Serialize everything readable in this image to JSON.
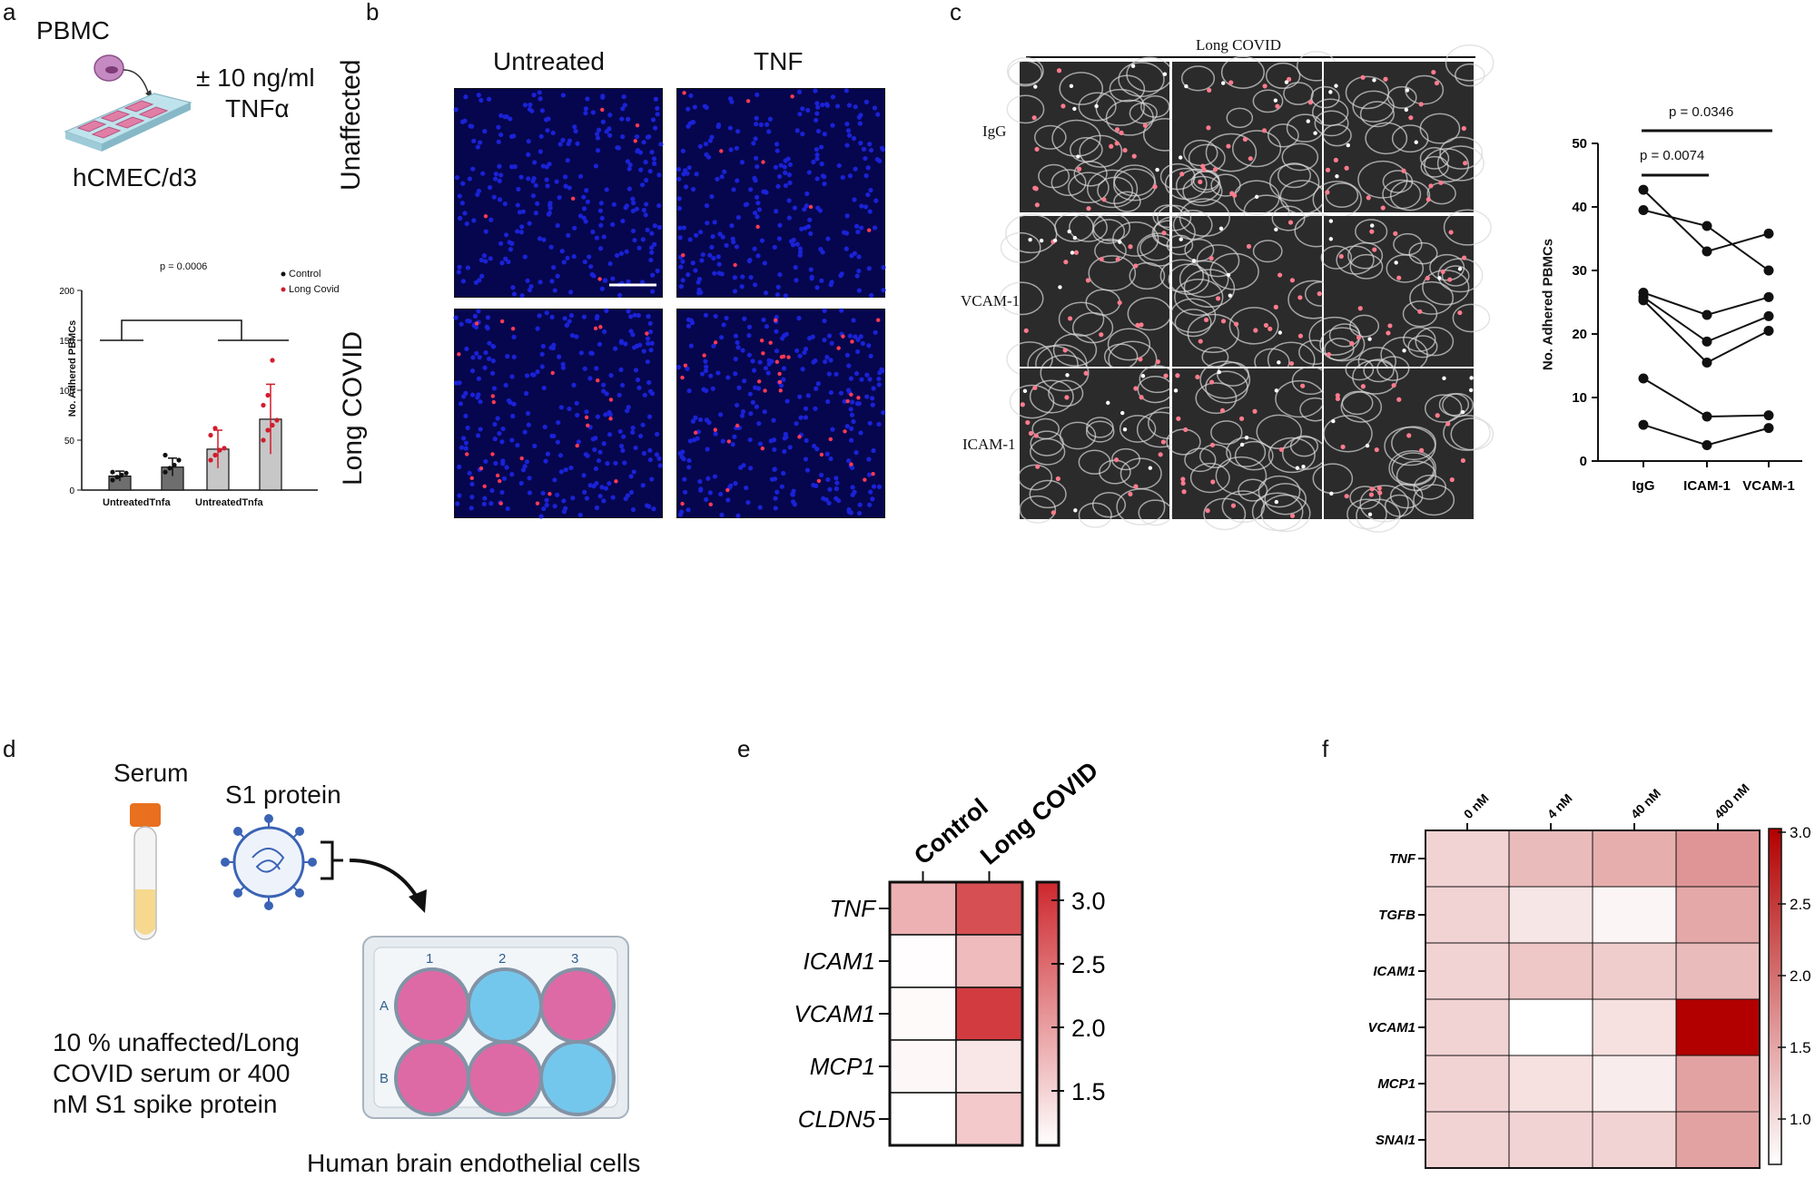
{
  "panels": {
    "a": {
      "label": "a",
      "schematic": {
        "pbmc": "PBMC",
        "treatment_line1": "± 10 ng/ml",
        "treatment_line2": "TNFα",
        "cells": "hCMEC/d3"
      },
      "chart": {
        "ylabel": "No. Adhered PBMCs",
        "pvalue": "p = 0.0006",
        "legend": [
          "Control",
          "Long Covid"
        ],
        "group_labels": [
          "UntreatedTnfa",
          "UntreatedTnfa"
        ],
        "yticks": [
          "0",
          "50",
          "100",
          "150",
          "200"
        ]
      }
    },
    "b": {
      "label": "b",
      "col_labels": [
        "Untreated",
        "TNF"
      ],
      "row_labels": [
        "Unaffected",
        "Long COVID"
      ]
    },
    "c": {
      "label": "c",
      "header": "Long COVID",
      "row_labels": [
        "IgG",
        "VCAM-1",
        "ICAM-1"
      ],
      "chart": {
        "ylabel": "No. Adhered PBMCs",
        "p1": "p = 0.0346",
        "p2": "p = 0.0074",
        "yticks": [
          "0",
          "10",
          "20",
          "30",
          "40",
          "50"
        ]
      }
    },
    "d": {
      "label": "d",
      "serum": "Serum",
      "s1": "S1 protein",
      "desc_line1": "10 % unaffected/Long",
      "desc_line2": "COVID serum or 400",
      "desc_line3": "nM S1 spike protein",
      "plate_cols": [
        "1",
        "2",
        "3"
      ],
      "plate_rows": [
        "A",
        "B"
      ],
      "caption": "Human brain endothelial cells"
    },
    "e": {
      "label": "e",
      "cols": [
        "Control",
        "Long COVID"
      ],
      "rows": [
        "TNF",
        "ICAM1",
        "VCAM1",
        "MCP1",
        "CLDN5"
      ],
      "scale_ticks": [
        "3.0",
        "2.5",
        "2.0",
        "1.5"
      ]
    },
    "f": {
      "label": "f",
      "cols": [
        "0 nM",
        "4 nM",
        "40 nM",
        "400 nM"
      ],
      "rows": [
        "TNF",
        "TGFB",
        "ICAM1",
        "VCAM1",
        "MCP1",
        "SNAI1"
      ],
      "scale_ticks": [
        "3.0",
        "2.5",
        "2.0",
        "1.5",
        "1.0"
      ]
    }
  },
  "colors": {
    "accent_red": "#c0392b",
    "heat_max": "#b40000",
    "nuclei_blue": "#1a22d6",
    "well_pink": "#de6aa5",
    "well_blue": "#74c7ec"
  },
  "chart_data": [
    {
      "type": "bar",
      "categories": [
        "Untreated",
        "Tnfa",
        "Untreated",
        "Tnfa"
      ],
      "series": [
        {
          "name": "Control",
          "values": [
            14,
            23,
            null,
            null
          ]
        },
        {
          "name": "Long Covid",
          "values": [
            null,
            null,
            41,
            71
          ]
        }
      ],
      "errors": [
        5,
        9,
        19,
        35
      ],
      "points": [
        [
          10,
          13,
          15,
          17,
          18
        ],
        [
          18,
          22,
          25,
          30,
          35
        ],
        [
          30,
          35,
          40,
          42,
          55,
          62
        ],
        [
          50,
          60,
          65,
          70,
          85,
          95,
          130
        ]
      ],
      "ylabel": "No. Adhered PBMCs",
      "ylim": [
        0,
        200
      ]
    },
    {
      "type": "line",
      "categories": [
        "IgG",
        "ICAM-1",
        "VCAM-1"
      ],
      "series": [
        {
          "values": [
            42.7,
            33.0,
            35.8
          ]
        },
        {
          "values": [
            39.5,
            37.0,
            30.0
          ]
        },
        {
          "values": [
            26.5,
            23.0,
            25.8
          ]
        },
        {
          "values": [
            25.8,
            18.8,
            22.8
          ]
        },
        {
          "values": [
            25.3,
            15.5,
            20.5
          ]
        },
        {
          "values": [
            13.0,
            7.0,
            7.2
          ]
        },
        {
          "values": [
            5.7,
            2.5,
            5.2
          ]
        }
      ],
      "ylabel": "No. Adhered PBMCs",
      "ylim": [
        0,
        50
      ]
    },
    {
      "type": "heatmap",
      "rows": [
        "TNF",
        "ICAM1",
        "VCAM1",
        "MCP1",
        "CLDN5"
      ],
      "cols": [
        "Control",
        "Long COVID"
      ],
      "values": [
        [
          1.8,
          2.8
        ],
        [
          1.02,
          1.7
        ],
        [
          1.05,
          3.0
        ],
        [
          1.08,
          1.25
        ],
        [
          1.0,
          1.55
        ]
      ],
      "range": [
        1.0,
        3.0
      ]
    },
    {
      "type": "heatmap",
      "rows": [
        "TNF",
        "TGFB",
        "ICAM1",
        "VCAM1",
        "MCP1",
        "SNAI1"
      ],
      "cols": [
        "0 nM",
        "4 nM",
        "40 nM",
        "400 nM"
      ],
      "values": [
        [
          1.3,
          1.5,
          1.6,
          1.8
        ],
        [
          1.3,
          1.15,
          1.03,
          1.65
        ],
        [
          1.3,
          1.4,
          1.35,
          1.5
        ],
        [
          1.3,
          0.95,
          1.2,
          3.0
        ],
        [
          1.3,
          1.2,
          1.1,
          1.7
        ],
        [
          1.3,
          1.3,
          1.3,
          1.7
        ]
      ],
      "range": [
        1.0,
        3.0
      ]
    }
  ]
}
